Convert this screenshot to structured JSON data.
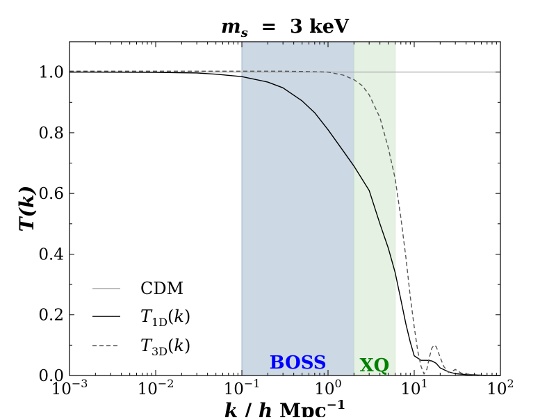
{
  "chart_data": {
    "type": "line",
    "title": "m_s = 3 keV",
    "xlabel": "k / h Mpc^-1",
    "ylabel": "T(k)",
    "xscale": "log",
    "xlim": [
      0.001,
      100
    ],
    "ylim": [
      0.0,
      1.1
    ],
    "x_tick_labels": [
      {
        "value": 0.001,
        "base": "10",
        "exp": "−3"
      },
      {
        "value": 0.01,
        "base": "10",
        "exp": "−2"
      },
      {
        "value": 0.1,
        "base": "10",
        "exp": "−1"
      },
      {
        "value": 1,
        "base": "10",
        "exp": "0"
      },
      {
        "value": 10,
        "base": "10",
        "exp": "1"
      },
      {
        "value": 100,
        "base": "10",
        "exp": "2"
      }
    ],
    "y_ticks": [
      0.0,
      0.2,
      0.4,
      0.6,
      0.8,
      1.0
    ],
    "y_tick_labels": [
      "0.0",
      "0.2",
      "0.4",
      "0.6",
      "0.8",
      "1.0"
    ],
    "grid": false,
    "legend_position": "lower-left",
    "bands": [
      {
        "label": "BOSS",
        "x_range": [
          0.1,
          2.0
        ],
        "color": "#a3b8ce",
        "label_color": "#0000ff"
      },
      {
        "label": "XQ",
        "x_range": [
          2.0,
          6.0
        ],
        "color": "#cfe6cc",
        "label_color": "#008000"
      }
    ],
    "series": [
      {
        "name": "CDM",
        "style": "solid",
        "color": "#a9a9a9",
        "x": [
          0.001,
          100
        ],
        "y": [
          1.0,
          1.0
        ]
      },
      {
        "name": "T_1D(k)",
        "style": "solid",
        "color": "#000000",
        "x": [
          0.001,
          0.01,
          0.03,
          0.05,
          0.1,
          0.2,
          0.3,
          0.5,
          0.7,
          1.0,
          1.5,
          2.0,
          3.0,
          4.0,
          5.0,
          6.0,
          7.0,
          8.0,
          9.0,
          10.0,
          12.0,
          14.0,
          16.0,
          18.0,
          20.0,
          25.0,
          30.0,
          40.0,
          60.0,
          100.0
        ],
        "y": [
          1.0,
          0.999,
          0.997,
          0.993,
          0.985,
          0.967,
          0.948,
          0.905,
          0.866,
          0.81,
          0.74,
          0.69,
          0.61,
          0.5,
          0.42,
          0.34,
          0.25,
          0.17,
          0.11,
          0.065,
          0.05,
          0.05,
          0.048,
          0.04,
          0.025,
          0.012,
          0.006,
          0.003,
          0.001,
          0.0
        ]
      },
      {
        "name": "T_3D(k)",
        "style": "dashed",
        "color": "#555555",
        "x": [
          0.001,
          0.1,
          0.3,
          0.5,
          1.0,
          1.5,
          2.0,
          2.5,
          3.0,
          4.0,
          5.0,
          6.0,
          7.0,
          8.0,
          9.0,
          10.0,
          11.0,
          12.0,
          13.0,
          14.0,
          15.0,
          16.0,
          17.0,
          18.0,
          20.0,
          22.0,
          25.0,
          28.0,
          30.0,
          35.0,
          40.0,
          60.0,
          100.0
        ],
        "y": [
          1.003,
          1.003,
          1.003,
          1.002,
          1.0,
          0.99,
          0.975,
          0.955,
          0.925,
          0.85,
          0.75,
          0.65,
          0.52,
          0.39,
          0.26,
          0.16,
          0.08,
          0.03,
          0.005,
          0.02,
          0.06,
          0.09,
          0.1,
          0.095,
          0.06,
          0.03,
          0.01,
          0.015,
          0.02,
          0.008,
          0.005,
          0.001,
          0.0
        ]
      }
    ]
  }
}
